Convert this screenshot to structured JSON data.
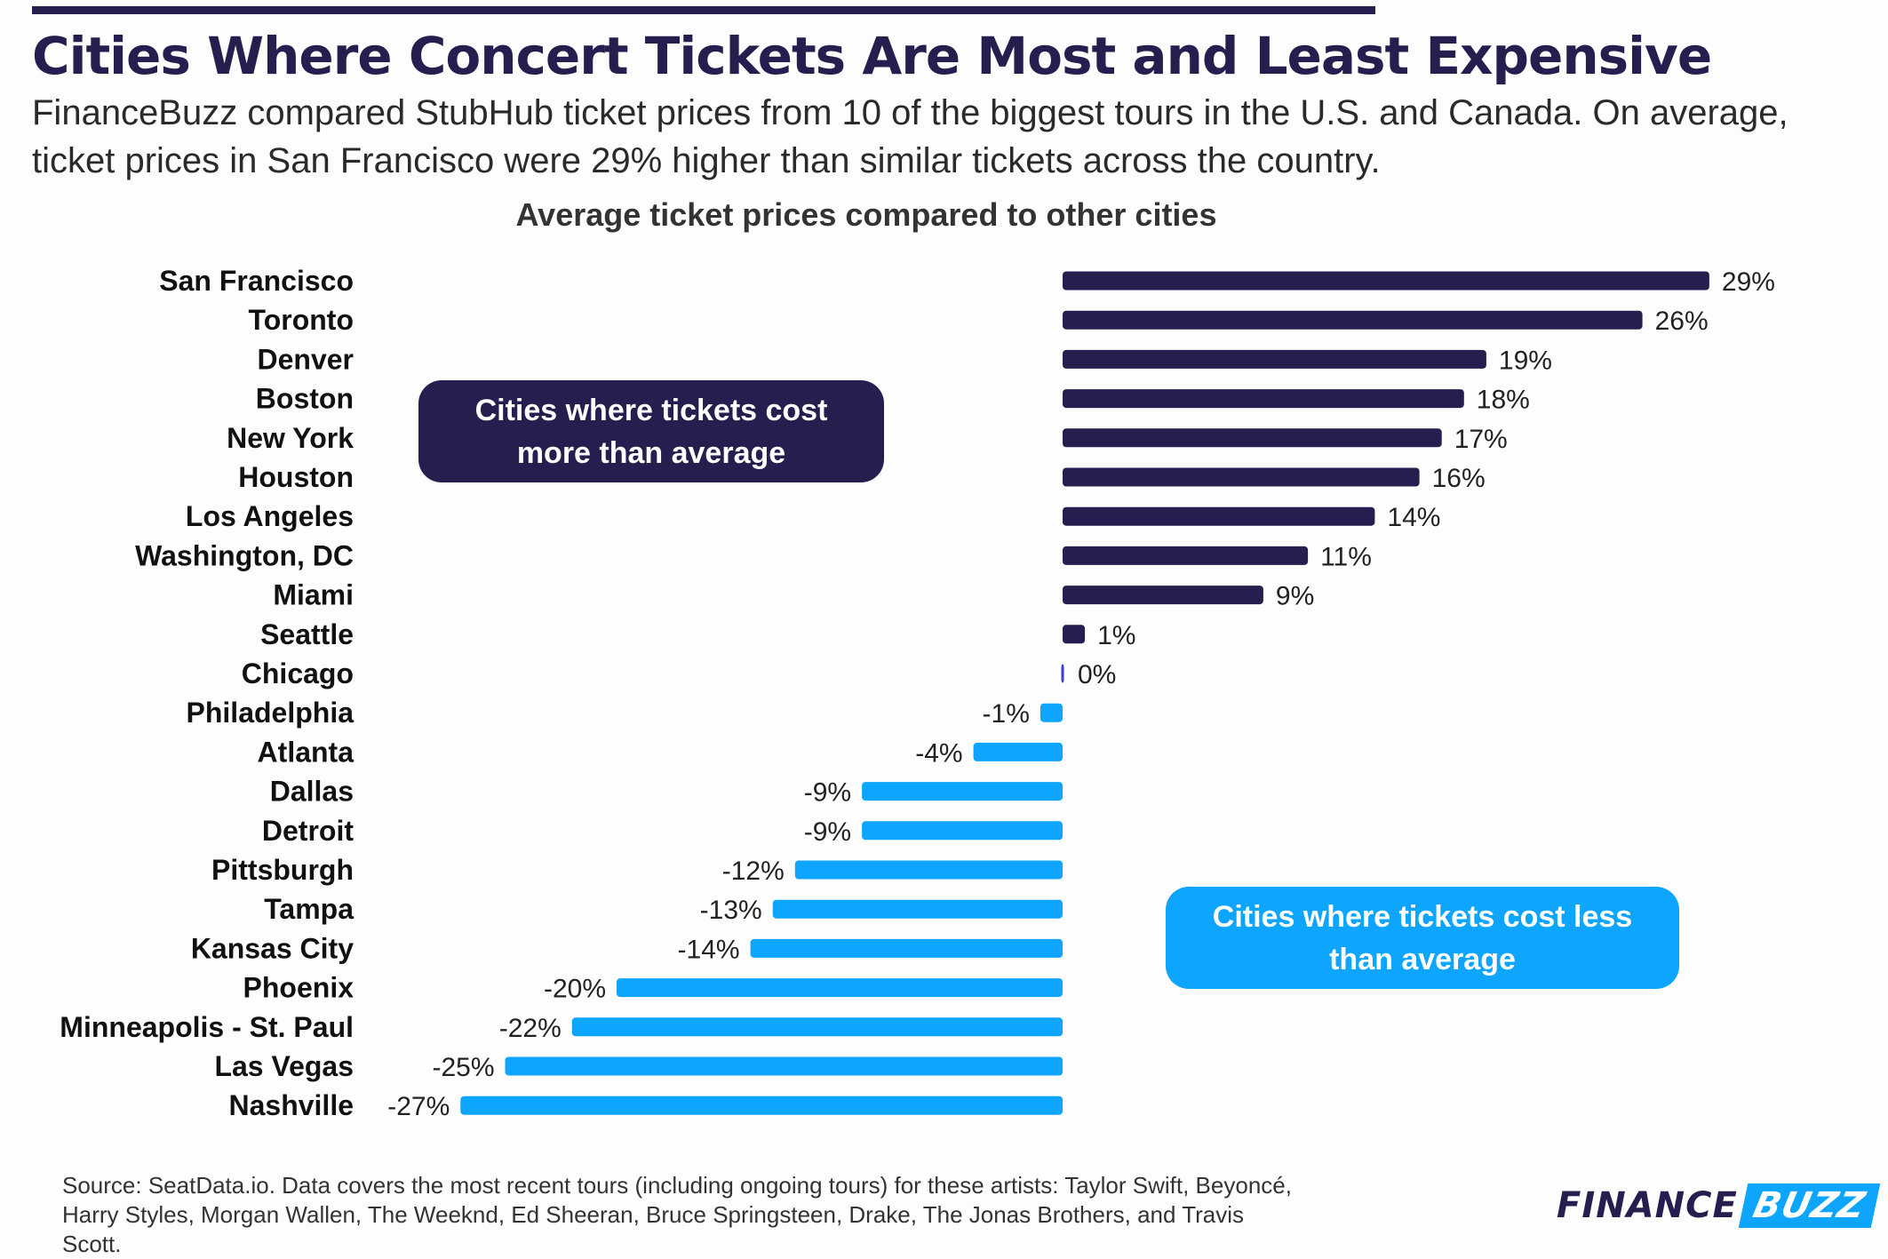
{
  "header": {
    "title": "Cities Where Concert Tickets Are Most and Least Expensive",
    "subtitle": "FinanceBuzz compared StubHub ticket prices from 10 of the biggest tours in the U.S. and Canada. On average, ticket prices in San Francisco were 29% higher than similar tickets across the country."
  },
  "callouts": {
    "more": "Cities where tickets cost more than average",
    "less": "Cities where tickets cost less than average"
  },
  "footer": {
    "source": "Source: SeatData.io. Data covers the most recent tours (including ongoing tours) for these artists: Taylor Swift, Beyoncé, Harry Styles, Morgan Wallen, The Weeknd, Ed Sheeran, Bruce Springsteen, Drake, The Jonas Brothers, and Travis Scott.",
    "logo_part1": "FINANCE",
    "logo_part2": "BUZZ"
  },
  "colors": {
    "positive": "#261e4f",
    "negative": "#0ea5ff",
    "zero": "#3b3bd6"
  },
  "chart_data": {
    "type": "bar",
    "orientation": "horizontal",
    "title": "Average ticket prices compared to other cities",
    "xlabel": "",
    "ylabel": "",
    "unit": "%",
    "xlim": [
      -27,
      29
    ],
    "grid": false,
    "categories": [
      "San Francisco",
      "Toronto",
      "Denver",
      "Boston",
      "New York",
      "Houston",
      "Los Angeles",
      "Washington, DC",
      "Miami",
      "Seattle",
      "Chicago",
      "Philadelphia",
      "Atlanta",
      "Dallas",
      "Detroit",
      "Pittsburgh",
      "Tampa",
      "Kansas City",
      "Phoenix",
      "Minneapolis - St. Paul",
      "Las Vegas",
      "Nashville"
    ],
    "values": [
      29,
      26,
      19,
      18,
      17,
      16,
      14,
      11,
      9,
      1,
      0,
      -1,
      -4,
      -9,
      -9,
      -12,
      -13,
      -14,
      -20,
      -22,
      -25,
      -27
    ],
    "labels": [
      "29%",
      "26%",
      "19%",
      "18%",
      "17%",
      "16%",
      "14%",
      "11%",
      "9%",
      "1%",
      "0%",
      "-1%",
      "-4%",
      "-9%",
      "-9%",
      "-12%",
      "-13%",
      "-14%",
      "-20%",
      "-22%",
      "-25%",
      "-27%"
    ]
  }
}
